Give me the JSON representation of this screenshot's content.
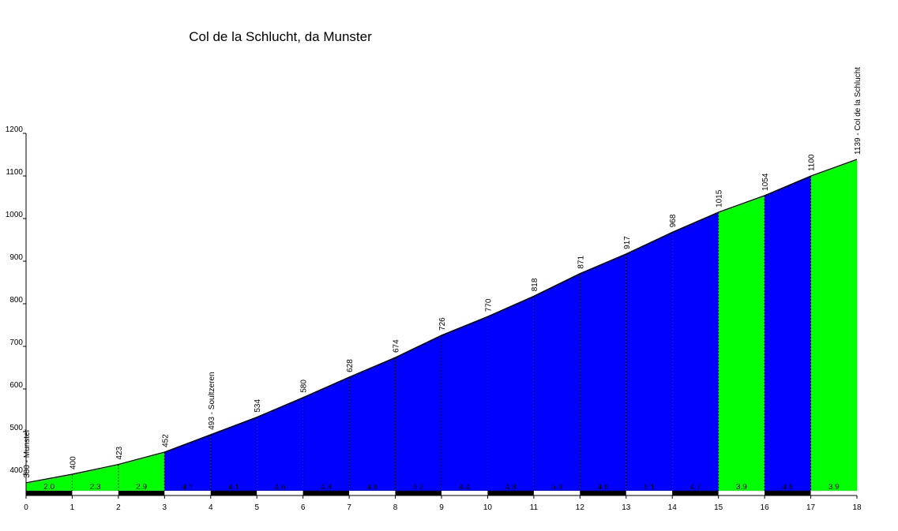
{
  "chart_data": {
    "type": "area",
    "title": "Col de la Schlucht, da Munster",
    "x": [
      0,
      1,
      2,
      3,
      4,
      5,
      6,
      7,
      8,
      9,
      10,
      11,
      12,
      13,
      14,
      15,
      16,
      17,
      18
    ],
    "series": [
      {
        "color": "#000000",
        "values": [
          380,
          400,
          423,
          452,
          493,
          534,
          580,
          628,
          674,
          726,
          770,
          818,
          871,
          917,
          968,
          1015,
          1054,
          1100,
          1139
        ],
        "value_labels": [
          "380 - Munster",
          "400",
          "423",
          "452",
          "493 - Soultzeren",
          "534",
          "580",
          "628",
          "674",
          "726",
          "770",
          "818",
          "871",
          "917",
          "968",
          "1015",
          "1054",
          "1100",
          "1139 - Col de la Schlucht"
        ]
      }
    ],
    "segments": {
      "values": [
        2.0,
        2.3,
        2.9,
        4.1,
        4.1,
        4.6,
        4.8,
        4.6,
        5.2,
        4.4,
        4.8,
        5.3,
        4.6,
        5.1,
        4.7,
        3.9,
        4.6,
        3.9
      ],
      "value_labels": [
        "2.0",
        "2.3",
        "2.9",
        "4.1",
        "4.1",
        "4.6",
        "4.8",
        "4.6",
        "5.2",
        "4.4",
        "4.8",
        "5.3",
        "4.6",
        "5.1",
        "4.7",
        "3.9",
        "4.6",
        "3.9"
      ],
      "colors": [
        "#00ff00",
        "#00ff00",
        "#00ff00",
        "#0000ff",
        "#0000ff",
        "#0000ff",
        "#0000ff",
        "#0000ff",
        "#0000ff",
        "#0000ff",
        "#0000ff",
        "#0000ff",
        "#0000ff",
        "#0000ff",
        "#0000ff",
        "#00ff00",
        "#0000ff",
        "#00ff00"
      ]
    },
    "xlim": [
      0,
      18
    ],
    "xticks": [
      0,
      1,
      2,
      3,
      4,
      5,
      6,
      7,
      8,
      9,
      10,
      11,
      12,
      13,
      14,
      15,
      16,
      17,
      18
    ],
    "ylim": [
      350,
      1200
    ],
    "yticks": [
      400,
      500,
      600,
      700,
      800,
      900,
      1000,
      1100,
      1200
    ]
  }
}
